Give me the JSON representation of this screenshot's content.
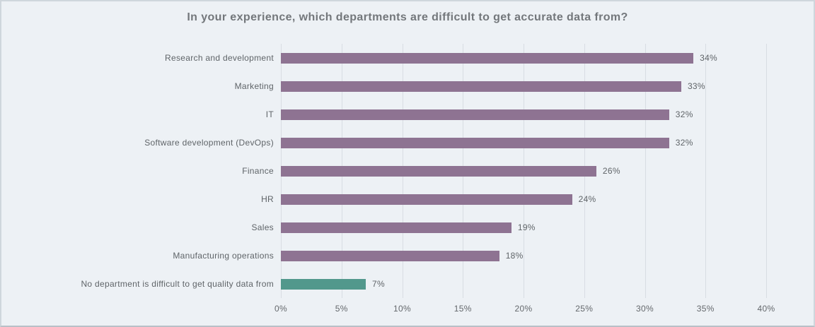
{
  "chart_data": {
    "type": "bar",
    "orientation": "horizontal",
    "title": "In your experience, which departments are difficult to get accurate data from?",
    "categories": [
      "Research and development",
      "Marketing",
      "IT",
      "Software development (DevOps)",
      "Finance",
      "HR",
      "Sales",
      "Manufacturing operations",
      "No department is difficult to get quality data from"
    ],
    "values": [
      34,
      33,
      32,
      32,
      26,
      24,
      19,
      18,
      7
    ],
    "value_labels": [
      "34%",
      "33%",
      "32%",
      "32%",
      "26%",
      "24%",
      "19%",
      "18%",
      "7%"
    ],
    "bar_colors": [
      "#8e7392",
      "#8e7392",
      "#8e7392",
      "#8e7392",
      "#8e7392",
      "#8e7392",
      "#8e7392",
      "#8e7392",
      "#52988c"
    ],
    "xlabel": "",
    "ylabel": "",
    "xlim": [
      0,
      40
    ],
    "xticks": [
      0,
      5,
      10,
      15,
      20,
      25,
      30,
      35,
      40
    ],
    "xtick_labels": [
      "0%",
      "5%",
      "10%",
      "15%",
      "20%",
      "25%",
      "30%",
      "35%",
      "40%"
    ],
    "grid": "vertical-gridlines-on",
    "legend": "none",
    "colors": {
      "background": "#edf1f5",
      "border": "#cfd6dc",
      "bar_default": "#8e7392",
      "bar_highlight": "#52988c",
      "gridline": "#d8dde3",
      "title_text": "#73777b",
      "label_text": "#5f6468"
    }
  }
}
